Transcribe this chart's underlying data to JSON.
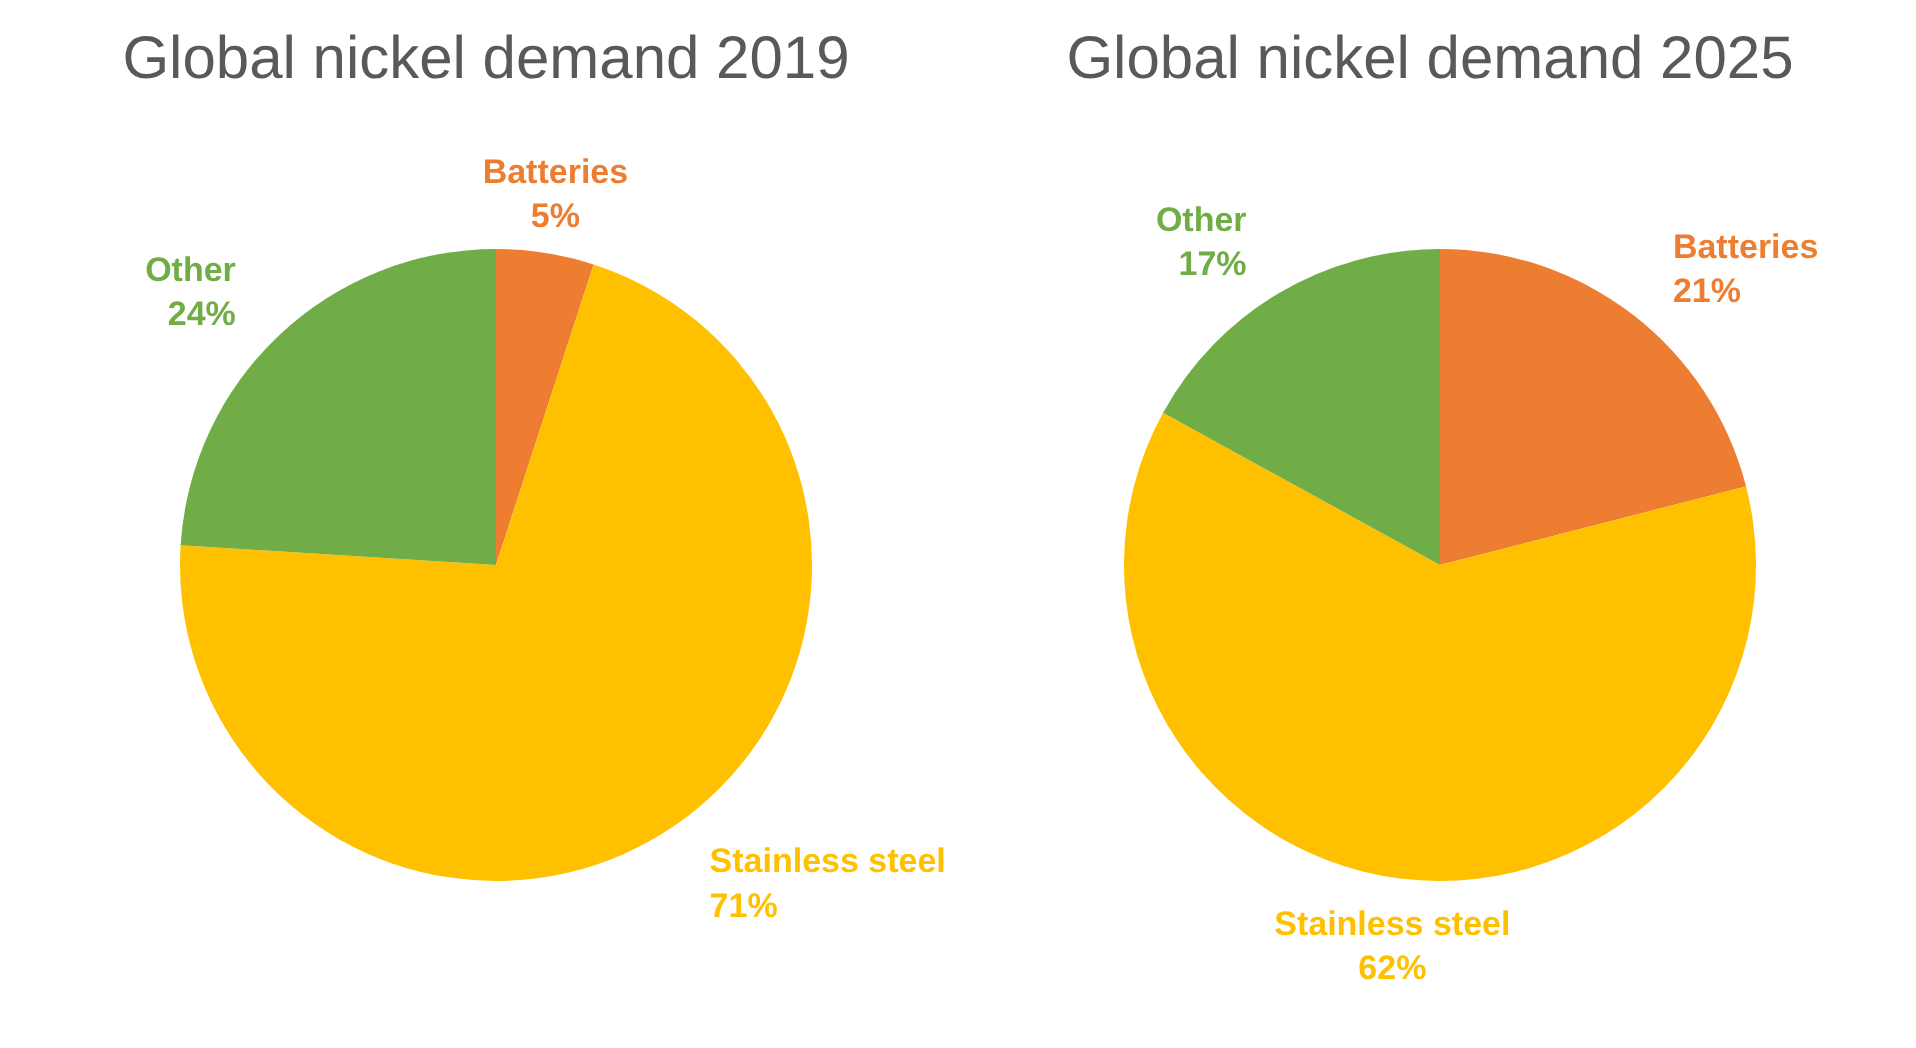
{
  "chart_data": [
    {
      "type": "pie",
      "title": "Global nickel demand 2019",
      "categories": [
        "Batteries",
        "Stainless steel",
        "Other"
      ],
      "values": [
        5,
        71,
        24
      ],
      "colors": [
        "#ed7d31",
        "#ffc000",
        "#70ad47"
      ],
      "value_labels": [
        "5%",
        "71%",
        "24%"
      ]
    },
    {
      "type": "pie",
      "title": "Global nickel demand 2025",
      "categories": [
        "Batteries",
        "Stainless steel",
        "Other"
      ],
      "values": [
        21,
        62,
        17
      ],
      "colors": [
        "#ed7d31",
        "#ffc000",
        "#70ad47"
      ],
      "value_labels": [
        "21%",
        "62%",
        "17%"
      ]
    }
  ]
}
